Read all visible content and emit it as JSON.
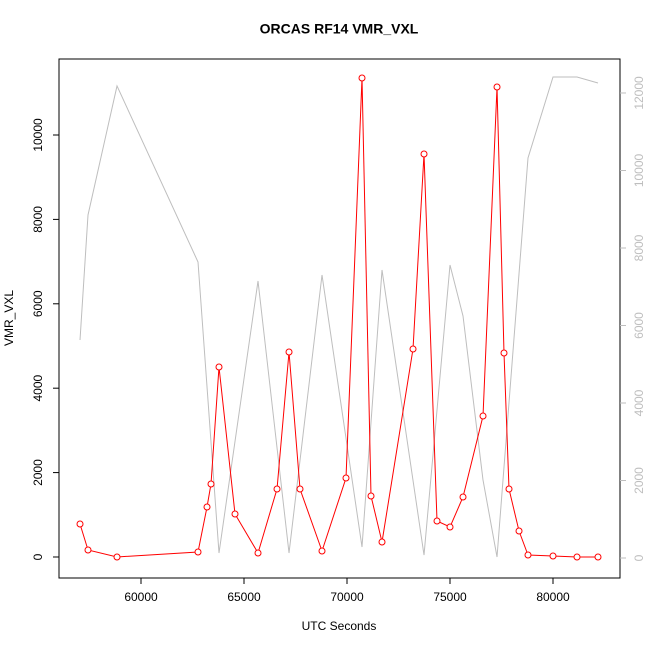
{
  "chart_data": {
    "type": "line",
    "title": "ORCAS RF14 VMR_VXL",
    "x_label": "UTC Seconds",
    "y_label": "VMR_VXL",
    "xlim": [
      56019,
      83252
    ],
    "xticks": [
      60000,
      65000,
      70000,
      75000,
      80000
    ],
    "ylim": [
      -498,
      11801
    ],
    "yticks": [
      0,
      2000,
      4000,
      6000,
      8000,
      10000
    ],
    "y2lim": [
      -516,
      12877
    ],
    "y2ticks": [
      0,
      2000,
      4000,
      6000,
      8000,
      10000,
      12000
    ],
    "series": [
      {
        "color": "#ff0000",
        "markers": true,
        "x": [
          57039,
          57427,
          58835,
          62767,
          63204,
          63398,
          63786,
          64563,
          65680,
          66602,
          67185,
          67718,
          68786,
          69951,
          70728,
          71165,
          71699,
          73204,
          73738,
          74369,
          75000,
          75631,
          76602,
          77282,
          77621,
          77864,
          78350,
          78786,
          80000,
          81165,
          82184
        ],
        "values": [
          782,
          166,
          0,
          118,
          1185,
          1730,
          4502,
          1019,
          95,
          1611,
          4858,
          1611,
          142,
          1872,
          11351,
          1445,
          355,
          4929,
          9550,
          853,
          711,
          1422,
          3341,
          11137,
          4834,
          1611,
          616,
          47,
          24,
          0,
          0
        ]
      },
      {
        "color": "#bebebe",
        "markers": false,
        "axis": "y2",
        "x": [
          57039,
          57427,
          58835,
          62767,
          63786,
          65680,
          67185,
          68786,
          70728,
          71699,
          73738,
          75000,
          75631,
          76602,
          77282,
          78786,
          80000,
          81165,
          82184
        ],
        "values": [
          5626,
          8852,
          12181,
          7639,
          129,
          7148,
          129,
          7303,
          284,
          7432,
          77,
          7561,
          6245,
          2013,
          26,
          10323,
          12413,
          12413,
          12258
        ]
      }
    ]
  }
}
